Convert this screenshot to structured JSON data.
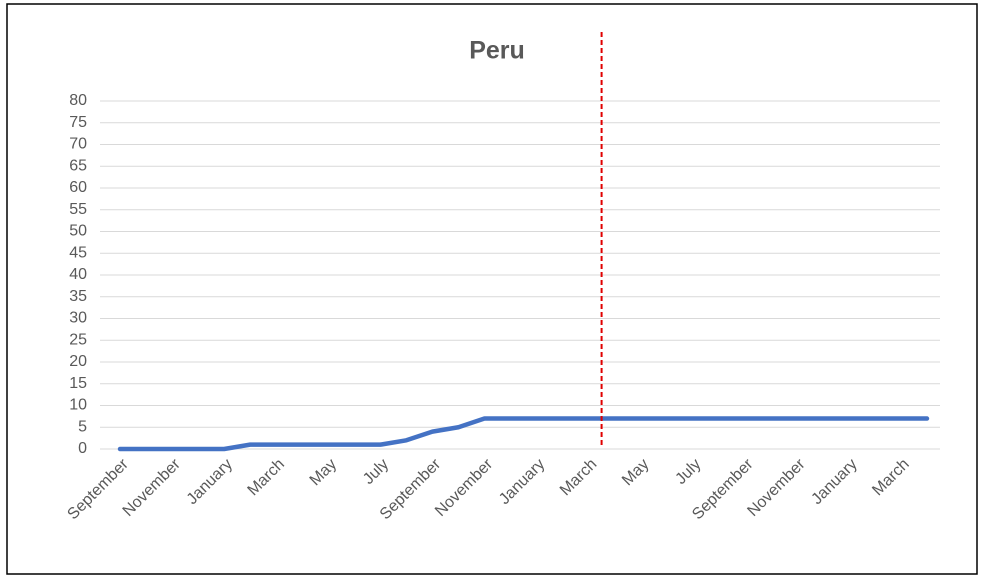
{
  "chart_data": {
    "type": "line",
    "title": "Peru",
    "categories": [
      "September",
      null,
      "November",
      null,
      "January",
      null,
      "March",
      null,
      "May",
      null,
      "July",
      null,
      "September",
      null,
      "November",
      null,
      "January",
      null,
      "March",
      null,
      "May",
      null,
      "July",
      null,
      "September",
      null,
      "November",
      null,
      "January",
      null,
      "March",
      null
    ],
    "series": [
      {
        "name": "Peru",
        "color": "#4472c4",
        "values": [
          0,
          0,
          0,
          0,
          0,
          1,
          1,
          1,
          1,
          1,
          1,
          2,
          4,
          5,
          7,
          7,
          7,
          7,
          7,
          7,
          7,
          7,
          7,
          7,
          7,
          7,
          7,
          7,
          7,
          7,
          7,
          7
        ]
      }
    ],
    "ylim": [
      0,
      80
    ],
    "yticks": [
      0,
      5,
      10,
      15,
      20,
      25,
      30,
      35,
      40,
      45,
      50,
      55,
      60,
      65,
      70,
      75,
      80
    ],
    "grid": true,
    "reference_line": {
      "x": 18.5,
      "color": "#e00000",
      "style": "dashed"
    }
  }
}
